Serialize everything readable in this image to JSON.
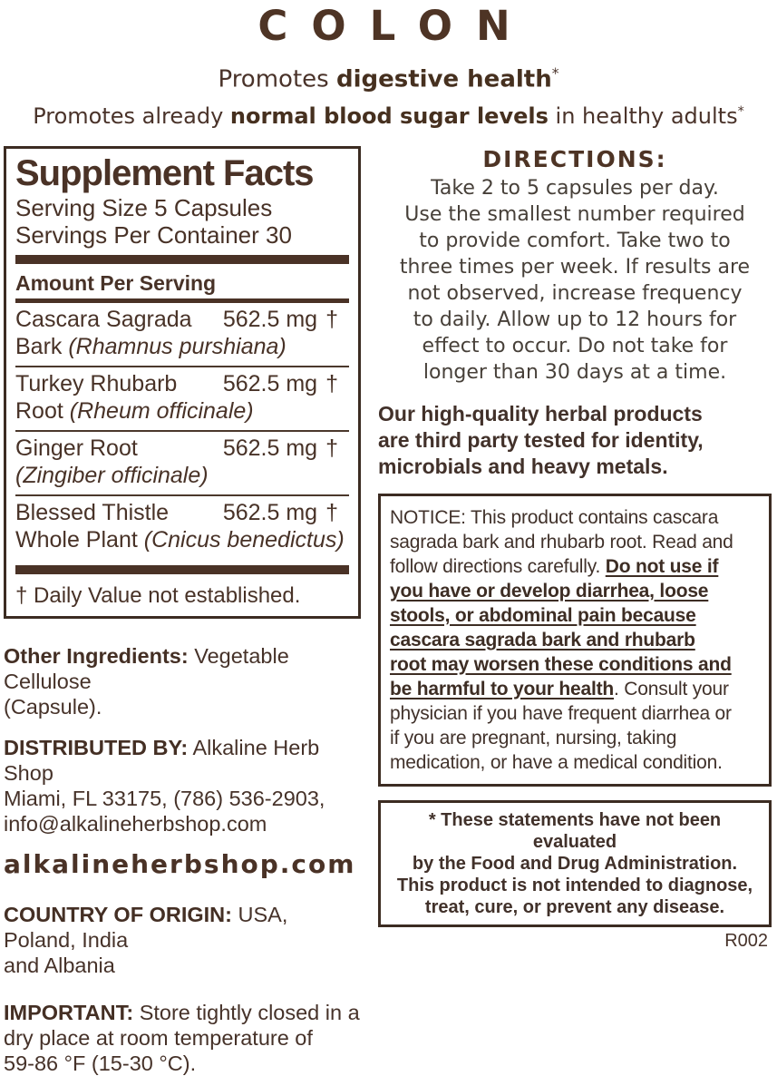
{
  "colors": {
    "brand_brown": "#4e3425",
    "bar_brown": "#4a3226",
    "text_brown": "#463229",
    "border_brown": "#3c2c22"
  },
  "header": {
    "title": "COLON",
    "tagline1": {
      "pre": "Promotes ",
      "bold": "digestive health",
      "sup": "*"
    },
    "tagline2": {
      "pre": "Promotes already ",
      "bold": "normal blood sugar levels",
      "post": " in healthy adults",
      "sup": "*"
    }
  },
  "facts": {
    "title": "Supplement Facts",
    "serving_size": "Serving Size 5 Capsules",
    "servings_per_container": "Servings Per Container 30",
    "amount_header": "Amount Per Serving",
    "rows": [
      {
        "line1": "Cascara Sagrada",
        "line2_prefix": "Bark ",
        "line2_italic": "(Rhamnus purshiana)",
        "amount": "562.5 mg",
        "dv": "†"
      },
      {
        "line1": "Turkey Rhubarb",
        "line2_prefix": "Root ",
        "line2_italic": "(Rheum officinale)",
        "amount": "562.5 mg",
        "dv": "†"
      },
      {
        "line1": "Ginger Root",
        "line2_prefix": "",
        "line2_italic": "(Zingiber officinale)",
        "amount": "562.5 mg",
        "dv": "†"
      },
      {
        "line1": "Blessed Thistle",
        "line2_prefix": "Whole Plant ",
        "line2_italic": "(Cnicus benedictus)",
        "amount": "562.5 mg",
        "dv": "†"
      }
    ],
    "footnote": "† Daily Value not established."
  },
  "other_ingredients": {
    "label": "Other Ingredients:",
    "text": "Vegetable Cellulose\n(Capsule)."
  },
  "distributed_by": {
    "label": "DISTRIBUTED BY:",
    "text": "Alkaline Herb Shop\nMiami, FL 33175, (786) 536-2903,\ninfo@alkalineherbshop.com"
  },
  "website": "alkalineherbshop.com",
  "country_of_origin": {
    "label": "COUNTRY OF ORIGIN:",
    "text": "USA, Poland, India\nand Albania"
  },
  "important": {
    "label": "IMPORTANT:",
    "text": "Store tightly closed in a\ndry place at room temperature of\n59-86 °F (15-30 °C)."
  },
  "directions": {
    "title": "DIRECTIONS:",
    "text": "Take 2 to 5 capsules per day.\nUse the smallest number required\nto provide comfort. Take two to\nthree times per week. If results are\nnot observed, increase frequency\nto daily. Allow up to 12 hours for\neffect to occur. Do not take for\nlonger than 30 days at a time."
  },
  "quality_statement": "Our high-quality herbal products\nare third party tested for identity,\nmicrobials and heavy metals.",
  "notice": {
    "part1": "NOTICE: This product contains cascara\nsagrada bark and rhubarb root. Read and\nfollow directions carefully. ",
    "bold_underline": "Do not use if\nyou have or develop diarrhea, loose\nstools, or abdominal pain because\ncascara sagrada bark and rhubarb\nroot may worsen these conditions and\nbe harmful to your health",
    "part2": ". Consult your\nphysician if you have frequent diarrhea or\nif you are pregnant, nursing, taking\nmedication, or have a medical condition."
  },
  "disclaimer": "* These statements have not been evaluated\nby the Food and Drug Administration.\nThis product is not intended to diagnose,\ntreat, cure, or prevent any disease.",
  "footer_code": "R002"
}
